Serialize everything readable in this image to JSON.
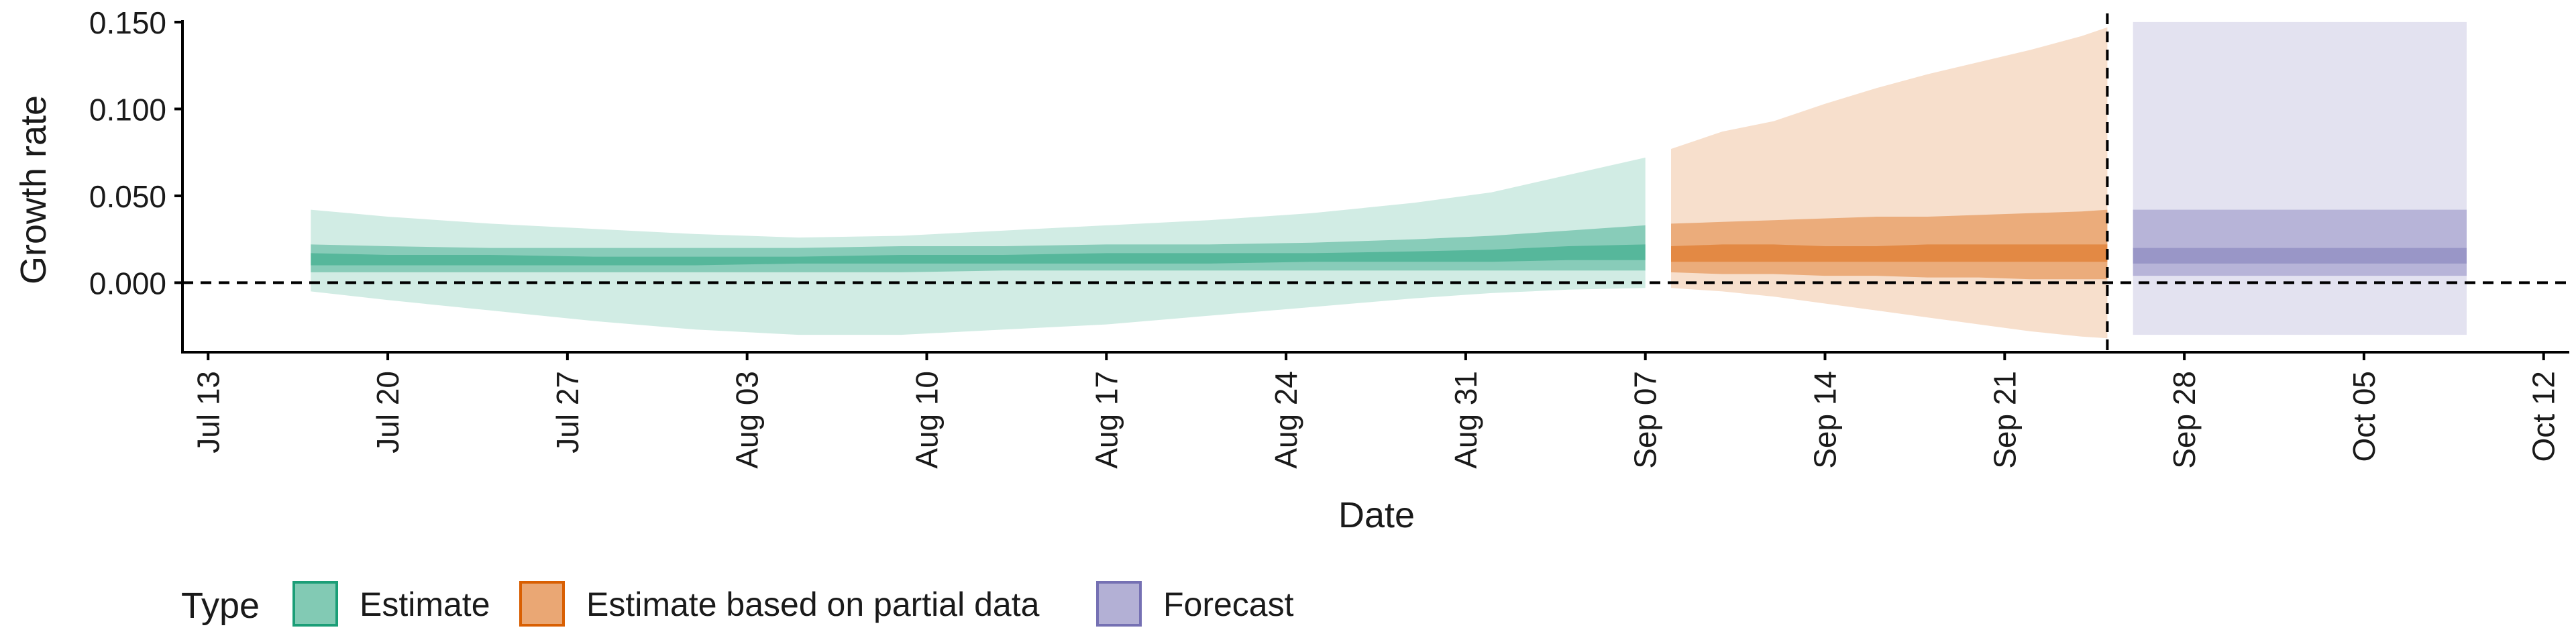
{
  "chart_data": {
    "type": "area",
    "xlabel": "Date",
    "ylabel": "Growth rate",
    "xlim": [
      "2020-07-12",
      "2020-10-13"
    ],
    "ylim": [
      -0.04,
      0.155
    ],
    "x_ticks": [
      "2020-07-13",
      "2020-07-20",
      "2020-07-27",
      "2020-08-03",
      "2020-08-10",
      "2020-08-17",
      "2020-08-24",
      "2020-08-31",
      "2020-09-07",
      "2020-09-14",
      "2020-09-21",
      "2020-09-28",
      "2020-10-05",
      "2020-10-12"
    ],
    "x_tick_labels": [
      "Jul 13",
      "Jul 20",
      "Jul 27",
      "Aug 03",
      "Aug 10",
      "Aug 17",
      "Aug 24",
      "Aug 31",
      "Sep 07",
      "Sep 14",
      "Sep 21",
      "Sep 28",
      "Oct 05",
      "Oct 12"
    ],
    "y_ticks": [
      0,
      0.05,
      0.1,
      0.15
    ],
    "y_tick_labels": [
      "0.000",
      "0.050",
      "0.100",
      "0.150"
    ],
    "reference_lines": [
      {
        "axis": "y",
        "value": 0,
        "style": "dashed"
      },
      {
        "axis": "x",
        "value": "2020-09-25",
        "style": "dashed"
      }
    ],
    "legend": {
      "title": "Type",
      "position": "bottom",
      "entries": [
        "Estimate",
        "Estimate based on partial data",
        "Forecast"
      ]
    },
    "series": [
      {
        "name": "Estimate",
        "color": "#1b9e77",
        "x": [
          "2020-07-17",
          "2020-07-20",
          "2020-07-24",
          "2020-07-28",
          "2020-08-01",
          "2020-08-05",
          "2020-08-09",
          "2020-08-13",
          "2020-08-17",
          "2020-08-21",
          "2020-08-25",
          "2020-08-29",
          "2020-09-01",
          "2020-09-04",
          "2020-09-07"
        ],
        "ci90_upper": [
          0.042,
          0.038,
          0.034,
          0.031,
          0.028,
          0.026,
          0.027,
          0.03,
          0.033,
          0.036,
          0.04,
          0.046,
          0.052,
          0.062,
          0.072
        ],
        "ci90_lower": [
          -0.005,
          -0.01,
          -0.016,
          -0.022,
          -0.027,
          -0.03,
          -0.03,
          -0.027,
          -0.024,
          -0.019,
          -0.014,
          -0.009,
          -0.006,
          -0.004,
          -0.003
        ],
        "ci50_upper": [
          0.022,
          0.021,
          0.02,
          0.02,
          0.02,
          0.02,
          0.021,
          0.021,
          0.022,
          0.022,
          0.023,
          0.025,
          0.027,
          0.03,
          0.033
        ],
        "ci50_lower": [
          0.006,
          0.006,
          0.006,
          0.006,
          0.006,
          0.006,
          0.006,
          0.007,
          0.007,
          0.007,
          0.007,
          0.007,
          0.007,
          0.007,
          0.007
        ],
        "ci20_upper": [
          0.017,
          0.016,
          0.016,
          0.015,
          0.015,
          0.015,
          0.016,
          0.016,
          0.017,
          0.017,
          0.017,
          0.018,
          0.019,
          0.021,
          0.022
        ],
        "ci20_lower": [
          0.01,
          0.01,
          0.01,
          0.01,
          0.01,
          0.011,
          0.011,
          0.011,
          0.011,
          0.011,
          0.012,
          0.012,
          0.012,
          0.013,
          0.013
        ]
      },
      {
        "name": "Estimate based on partial data",
        "color": "#d95f02",
        "x": [
          "2020-09-08",
          "2020-09-10",
          "2020-09-12",
          "2020-09-14",
          "2020-09-16",
          "2020-09-18",
          "2020-09-20",
          "2020-09-22",
          "2020-09-24",
          "2020-09-25"
        ],
        "ci90_upper": [
          0.077,
          0.087,
          0.093,
          0.103,
          0.112,
          0.12,
          0.127,
          0.134,
          0.142,
          0.147
        ],
        "ci90_lower": [
          -0.003,
          -0.005,
          -0.008,
          -0.012,
          -0.016,
          -0.02,
          -0.024,
          -0.028,
          -0.031,
          -0.032
        ],
        "ci50_upper": [
          0.034,
          0.035,
          0.036,
          0.037,
          0.038,
          0.038,
          0.039,
          0.04,
          0.041,
          0.042
        ],
        "ci50_lower": [
          0.006,
          0.005,
          0.005,
          0.004,
          0.004,
          0.003,
          0.003,
          0.002,
          0.002,
          0.002
        ],
        "ci20_upper": [
          0.021,
          0.022,
          0.022,
          0.021,
          0.021,
          0.022,
          0.022,
          0.022,
          0.022,
          0.022
        ],
        "ci20_lower": [
          0.012,
          0.012,
          0.012,
          0.012,
          0.012,
          0.012,
          0.012,
          0.012,
          0.012,
          0.012
        ]
      },
      {
        "name": "Forecast",
        "color": "#7570b3",
        "x": [
          "2020-09-26",
          "2020-10-09"
        ],
        "ci90_upper": [
          0.15,
          0.15
        ],
        "ci90_lower": [
          -0.03,
          -0.03
        ],
        "ci50_upper": [
          0.042,
          0.042
        ],
        "ci50_lower": [
          0.004,
          0.004
        ],
        "ci20_upper": [
          0.02,
          0.02
        ],
        "ci20_lower": [
          0.011,
          0.011
        ]
      }
    ]
  }
}
